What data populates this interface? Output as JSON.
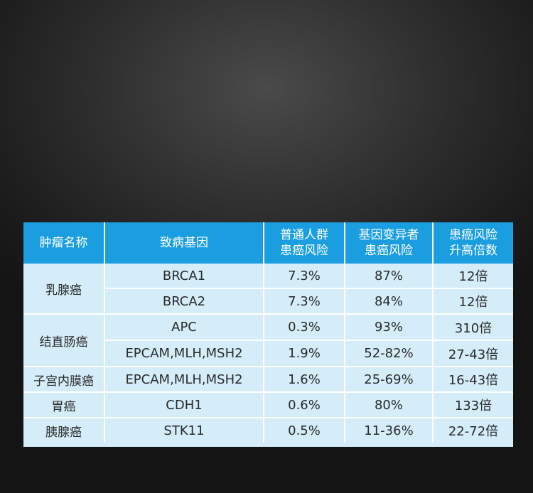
{
  "table": {
    "headers": {
      "tumor": "肿瘤名称",
      "gene": "致病基因",
      "general_risk": [
        "普通人群",
        "患癌风险"
      ],
      "carrier_risk": [
        "基因变异者",
        "患癌风险"
      ],
      "fold_increase": [
        "患癌风险",
        "升高倍数"
      ]
    },
    "groups": [
      {
        "tumor": "乳腺癌",
        "rows": [
          {
            "gene": "BRCA1",
            "general_risk": "7.3%",
            "carrier_risk": "87%",
            "fold_increase": "12倍"
          },
          {
            "gene": "BRCA2",
            "general_risk": "7.3%",
            "carrier_risk": "84%",
            "fold_increase": "12倍"
          }
        ]
      },
      {
        "tumor": "结直肠癌",
        "rows": [
          {
            "gene": "APC",
            "general_risk": "0.3%",
            "carrier_risk": "93%",
            "fold_increase": "310倍"
          },
          {
            "gene": "EPCAM,MLH,MSH2",
            "general_risk": "1.9%",
            "carrier_risk": "52-82%",
            "fold_increase": "27-43倍"
          }
        ]
      },
      {
        "tumor": "子宫内膜癌",
        "rows": [
          {
            "gene": "EPCAM,MLH,MSH2",
            "general_risk": "1.6%",
            "carrier_risk": "25-69%",
            "fold_increase": "16-43倍"
          }
        ]
      },
      {
        "tumor": "胃癌",
        "rows": [
          {
            "gene": "CDH1",
            "general_risk": "0.6%",
            "carrier_risk": "80%",
            "fold_increase": "133倍"
          }
        ]
      },
      {
        "tumor": "胰腺癌",
        "rows": [
          {
            "gene": "STK11",
            "general_risk": "0.5%",
            "carrier_risk": "11-36%",
            "fold_increase": "22-72倍"
          }
        ]
      }
    ]
  },
  "colors": {
    "header_bg": "#1a9ee0",
    "body_bg": "#d4edf9",
    "page_bg": "#2f2f2f"
  }
}
